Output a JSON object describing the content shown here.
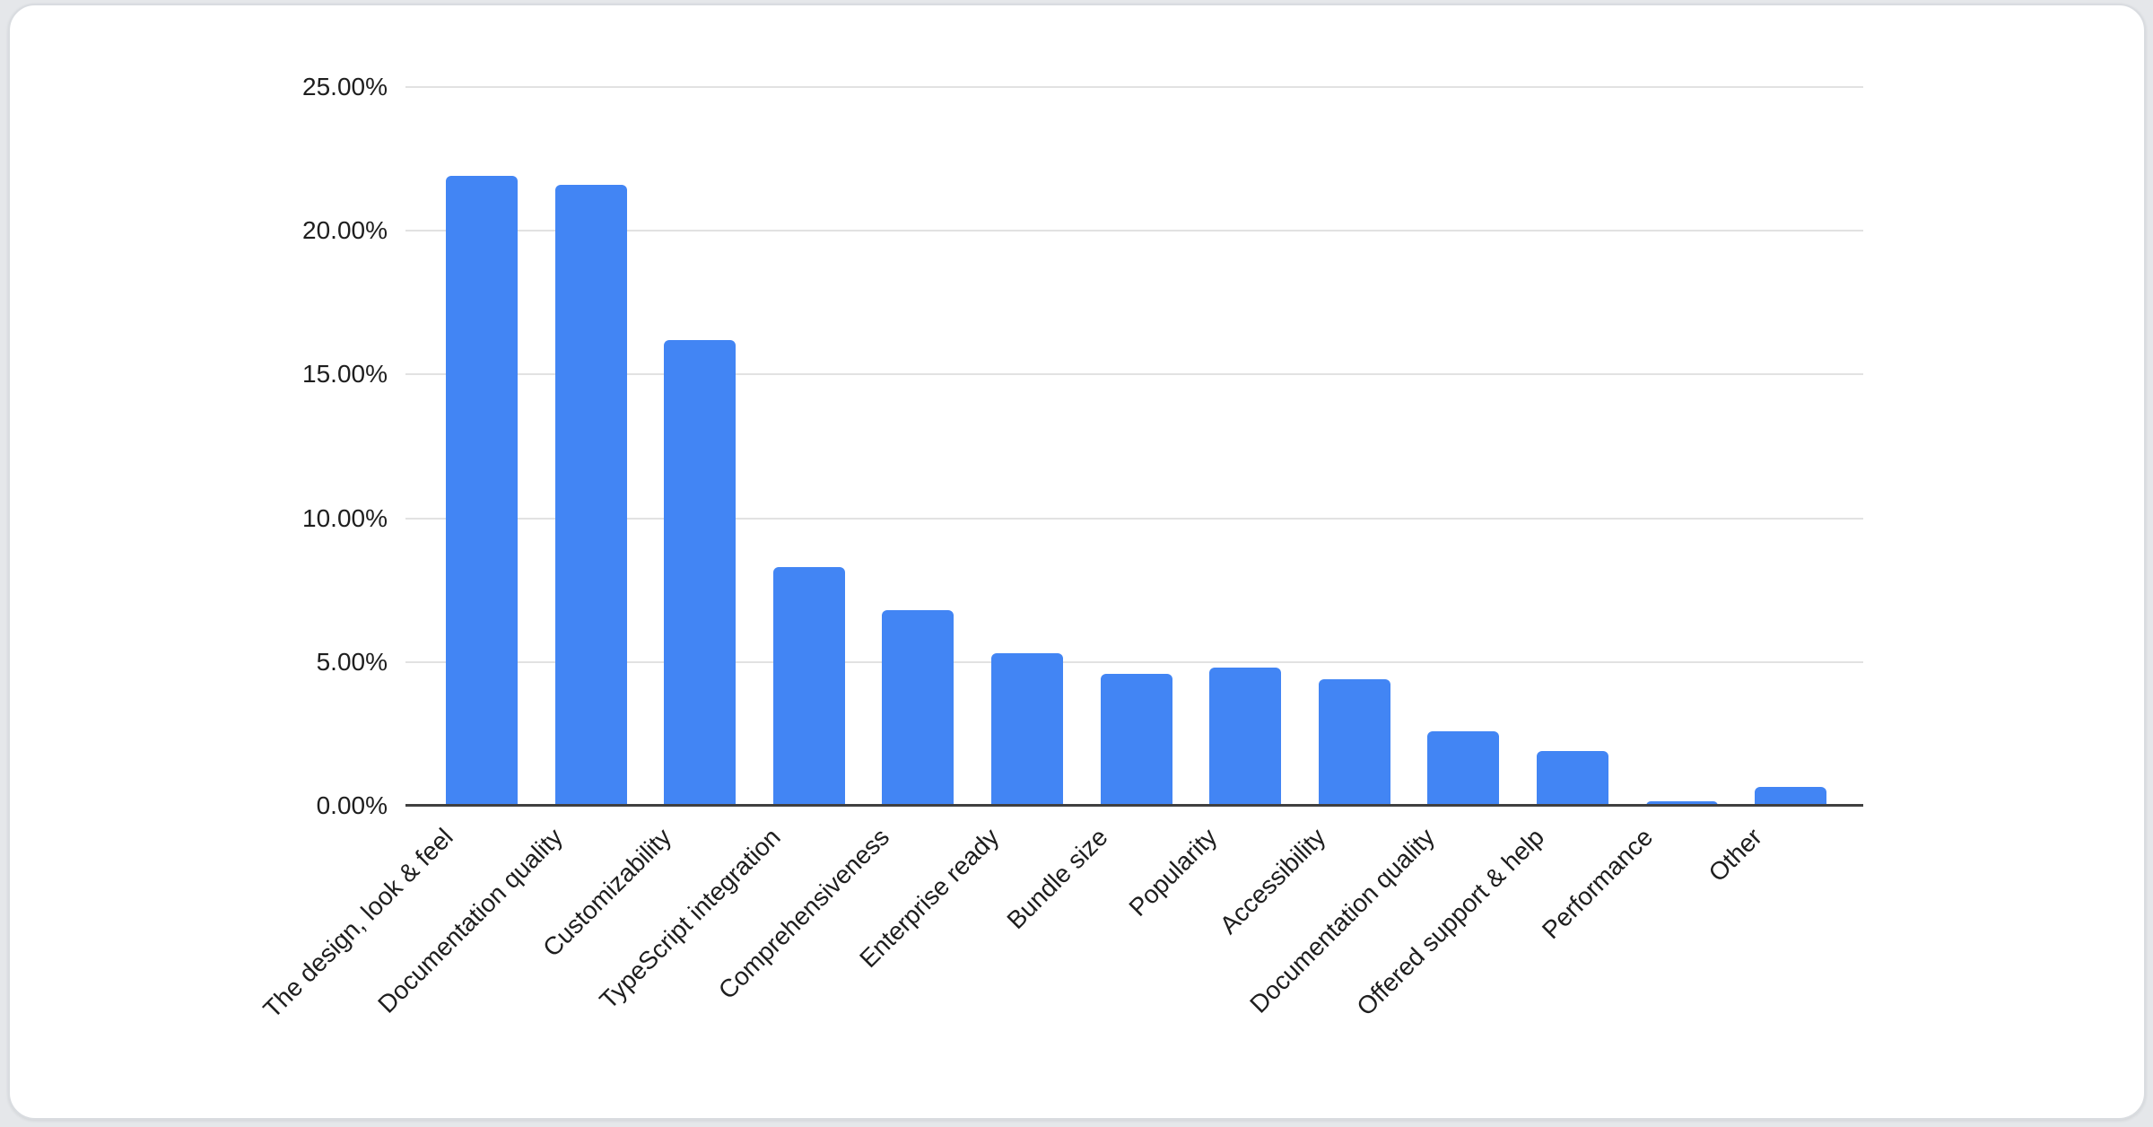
{
  "window": {
    "background": "#e5e7ea",
    "card_background": "#ffffff",
    "card_border": "#d9dce0"
  },
  "chart_data": {
    "type": "bar",
    "title": "",
    "xlabel": "",
    "ylabel": "",
    "categories": [
      "The design, look & feel",
      "Documentation quality",
      "Customizability",
      "TypeScript integration",
      "Comprehensiveness",
      "Enterprise ready",
      "Bundle size",
      "Popularity",
      "Accessibility",
      "Documentation quality",
      "Offered support & help",
      "Performance",
      "Other"
    ],
    "values": [
      21.9,
      21.6,
      16.2,
      8.3,
      6.8,
      5.3,
      4.6,
      4.8,
      4.4,
      2.6,
      1.9,
      0.15,
      0.65
    ],
    "value_unit": "%",
    "ylim": [
      0,
      25
    ],
    "y_ticks": [
      {
        "value": 0,
        "label": "0.00%"
      },
      {
        "value": 5,
        "label": "5.00%"
      },
      {
        "value": 10,
        "label": "10.00%"
      },
      {
        "value": 15,
        "label": "15.00%"
      },
      {
        "value": 20,
        "label": "20.00%"
      },
      {
        "value": 25,
        "label": "25.00%"
      }
    ],
    "grid": true,
    "legend": false,
    "x_label_rotation_deg": -45,
    "bar_color": "#4285f4",
    "axis_color": "#404040",
    "gridline_color": "#e2e2e2",
    "label_color": "#1e1e1e"
  }
}
